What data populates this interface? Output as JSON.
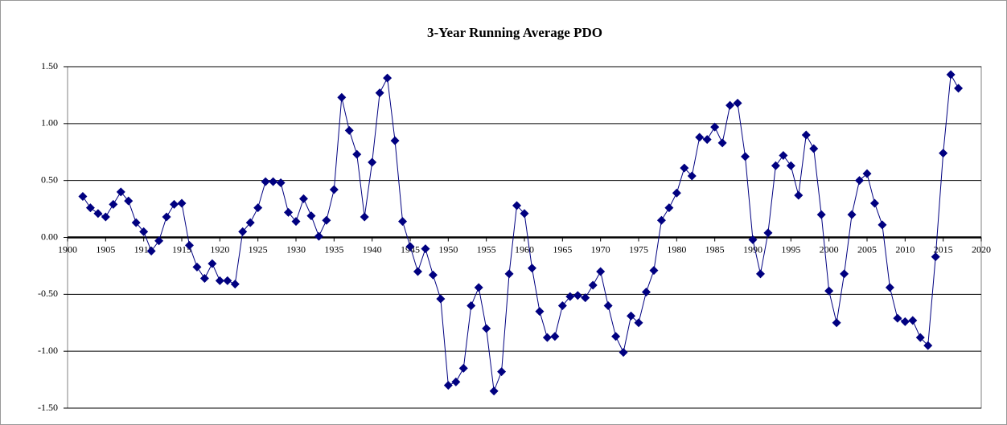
{
  "chart_data": {
    "type": "line",
    "title": "3-Year Running Average PDO",
    "x": [
      1902,
      1903,
      1904,
      1905,
      1906,
      1907,
      1908,
      1909,
      1910,
      1911,
      1912,
      1913,
      1914,
      1915,
      1916,
      1917,
      1918,
      1919,
      1920,
      1921,
      1922,
      1923,
      1924,
      1925,
      1926,
      1927,
      1928,
      1929,
      1930,
      1931,
      1932,
      1933,
      1934,
      1935,
      1936,
      1937,
      1938,
      1939,
      1940,
      1941,
      1942,
      1943,
      1944,
      1945,
      1946,
      1947,
      1948,
      1949,
      1950,
      1951,
      1952,
      1953,
      1954,
      1955,
      1956,
      1957,
      1958,
      1959,
      1960,
      1961,
      1962,
      1963,
      1964,
      1965,
      1966,
      1967,
      1968,
      1969,
      1970,
      1971,
      1972,
      1973,
      1974,
      1975,
      1976,
      1977,
      1978,
      1979,
      1980,
      1981,
      1982,
      1983,
      1984,
      1985,
      1986,
      1987,
      1988,
      1989,
      1990,
      1991,
      1992,
      1993,
      1994,
      1995,
      1996,
      1997,
      1998,
      1999,
      2000,
      2001,
      2002,
      2003,
      2004,
      2005,
      2006,
      2007,
      2008,
      2009,
      2010,
      2011,
      2012,
      2013,
      2014,
      2015,
      2016,
      2017
    ],
    "values": [
      0.36,
      0.26,
      0.21,
      0.18,
      0.29,
      0.4,
      0.32,
      0.13,
      0.05,
      -0.12,
      -0.03,
      0.18,
      0.29,
      0.3,
      -0.07,
      -0.26,
      -0.36,
      -0.23,
      -0.38,
      -0.38,
      -0.41,
      0.05,
      0.13,
      0.26,
      0.49,
      0.49,
      0.48,
      0.22,
      0.14,
      0.34,
      0.19,
      0.01,
      0.15,
      0.42,
      1.23,
      0.94,
      0.73,
      0.18,
      0.66,
      1.27,
      1.4,
      0.85,
      0.14,
      -0.08,
      -0.3,
      -0.1,
      -0.33,
      -0.54,
      -1.3,
      -1.27,
      -1.15,
      -0.6,
      -0.44,
      -0.8,
      -1.35,
      -1.18,
      -0.32,
      0.28,
      0.21,
      -0.27,
      -0.65,
      -0.88,
      -0.87,
      -0.6,
      -0.52,
      -0.51,
      -0.53,
      -0.42,
      -0.3,
      -0.6,
      -0.87,
      -1.01,
      -0.69,
      -0.75,
      -0.48,
      -0.29,
      0.15,
      0.26,
      0.39,
      0.61,
      0.54,
      0.88,
      0.86,
      0.97,
      0.83,
      1.16,
      1.18,
      0.71,
      -0.02,
      -0.32,
      0.04,
      0.63,
      0.72,
      0.63,
      0.37,
      0.9,
      0.78,
      0.2,
      -0.47,
      -0.75,
      -0.32,
      0.2,
      0.5,
      0.56,
      0.3,
      0.11,
      -0.44,
      -0.71,
      -0.74,
      -0.73,
      -0.88,
      -0.95,
      -0.17,
      0.74,
      1.43,
      1.31
    ],
    "color": "#000080",
    "xlim": [
      1900,
      2020
    ],
    "xticks": [
      1900,
      1905,
      1910,
      1915,
      1920,
      1925,
      1930,
      1935,
      1940,
      1945,
      1950,
      1955,
      1960,
      1965,
      1970,
      1975,
      1980,
      1985,
      1990,
      1995,
      2000,
      2005,
      2010,
      2015,
      2020
    ],
    "ylim": [
      -1.5,
      1.5
    ],
    "yticks": [
      {
        "value": -1.5,
        "label": "-1.50"
      },
      {
        "value": -1,
        "label": "-1.00"
      },
      {
        "value": -0.5,
        "label": "-0.50"
      },
      {
        "value": 0,
        "label": "0.00"
      },
      {
        "value": 0.5,
        "label": "0.50"
      },
      {
        "value": 1,
        "label": "1.00"
      },
      {
        "value": 1.5,
        "label": "1.50"
      }
    ],
    "grid": true
  }
}
